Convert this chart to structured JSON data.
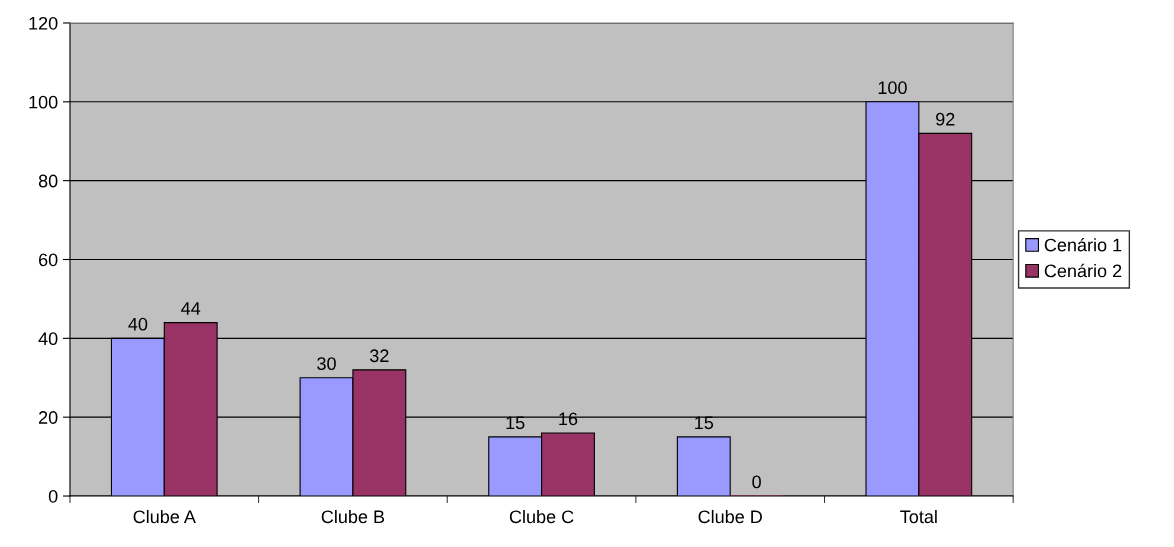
{
  "chart_data": {
    "type": "bar",
    "categories": [
      "Clube A",
      "Clube B",
      "Clube C",
      "Clube D",
      "Total"
    ],
    "series": [
      {
        "name": "Cenário 1",
        "color": "#9999ff",
        "values": [
          40,
          30,
          15,
          15,
          100
        ]
      },
      {
        "name": "Cenário 2",
        "color": "#993366",
        "values": [
          44,
          32,
          16,
          0,
          92
        ]
      }
    ],
    "ylim": [
      0,
      120
    ],
    "yticks": [
      0,
      20,
      40,
      60,
      80,
      100,
      120
    ],
    "grid": "y",
    "legend": "right",
    "data_labels": true
  }
}
